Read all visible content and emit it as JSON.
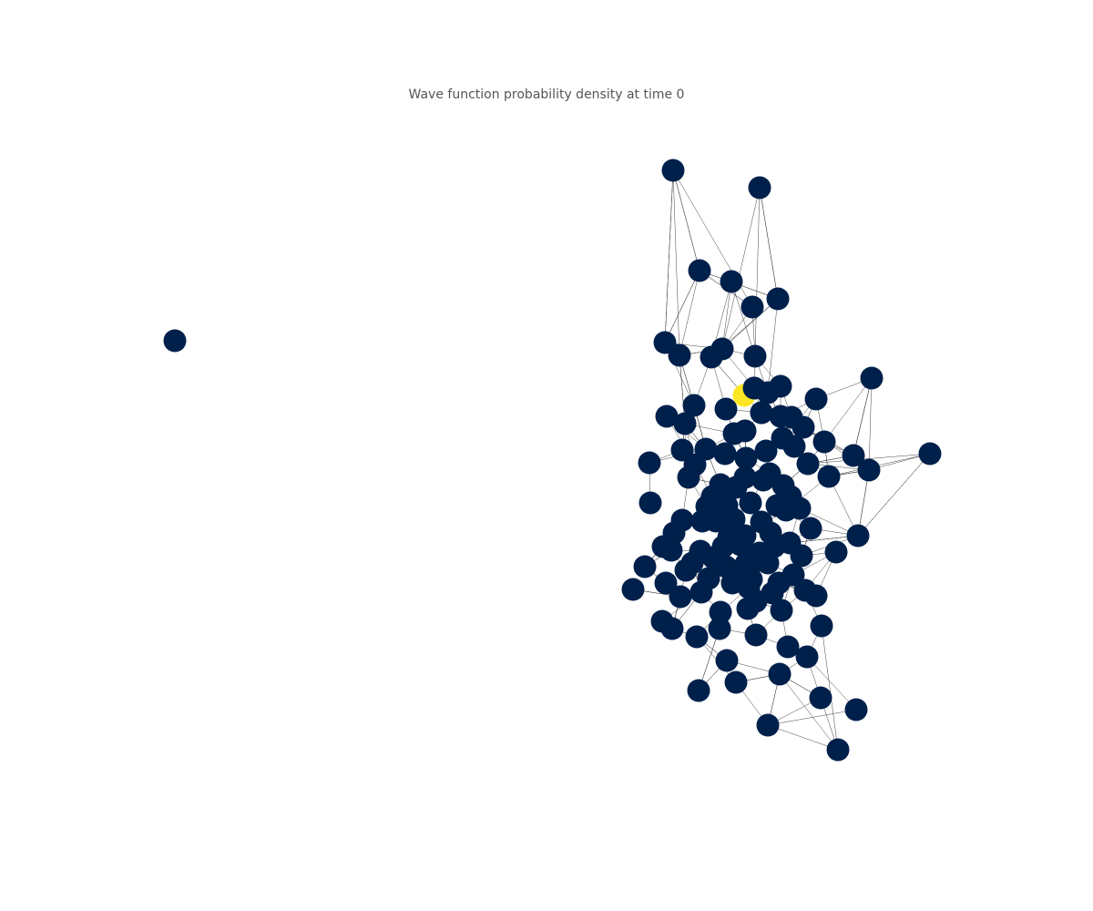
{
  "title": "Wave function probability density at time 0",
  "colors": {
    "background": "#ffffff",
    "node_default": "#00204c",
    "node_highlight": "#fde725",
    "edge": "#444444",
    "title": "#555555"
  },
  "chart_data": {
    "type": "network",
    "title": "Wave function probability density at time 0",
    "colormap": "cividis",
    "highlighted_node_value": 1.0,
    "other_node_value": 0.0,
    "node_count": 130,
    "isolated_node_count": 1
  }
}
